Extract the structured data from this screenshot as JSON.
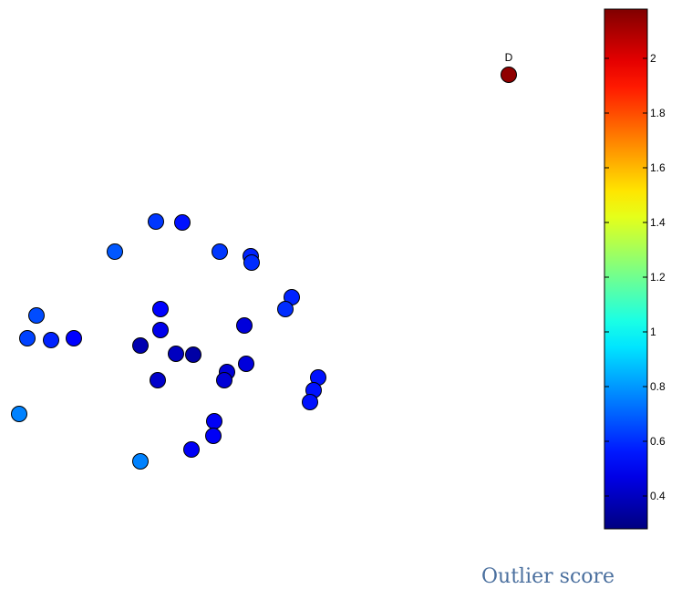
{
  "chart_data": {
    "type": "scatter",
    "title": "",
    "xlabel": "",
    "ylabel": "",
    "axes_visible": false,
    "grid": false,
    "colormap": "jet",
    "colorbar": {
      "min": 0.28,
      "max": 2.18,
      "ticks": [
        0.4,
        0.6,
        0.8,
        1,
        1.2,
        1.4,
        1.6,
        1.8,
        2
      ],
      "tick_labels": [
        "0.4",
        "0.6",
        "0.8",
        "1",
        "1.2",
        "1.4",
        "1.6",
        "1.8",
        "2"
      ],
      "location": "right",
      "caption": "Outlier score"
    },
    "points": [
      {
        "x": 558,
        "y": -82,
        "score": 2.15,
        "label": "D"
      },
      {
        "x": 171,
        "y": -243,
        "score": 0.62
      },
      {
        "x": 200,
        "y": -244,
        "score": 0.55
      },
      {
        "x": 126,
        "y": -276,
        "score": 0.68
      },
      {
        "x": 241,
        "y": -276,
        "score": 0.62
      },
      {
        "x": 275,
        "y": -281,
        "score": 0.58
      },
      {
        "x": 276,
        "y": -288,
        "score": 0.6
      },
      {
        "x": 320,
        "y": -326,
        "score": 0.58
      },
      {
        "x": 313,
        "y": -339,
        "score": 0.6
      },
      {
        "x": 176,
        "y": -339,
        "score": 0.52
      },
      {
        "x": 40,
        "y": -346,
        "score": 0.66
      },
      {
        "x": 268,
        "y": -357,
        "score": 0.45
      },
      {
        "x": 176,
        "y": -362,
        "score": 0.48
      },
      {
        "x": 30,
        "y": -371,
        "score": 0.64
      },
      {
        "x": 56,
        "y": -373,
        "score": 0.58
      },
      {
        "x": 81,
        "y": -371,
        "score": 0.52
      },
      {
        "x": 154,
        "y": -379,
        "score": 0.37
      },
      {
        "x": 193,
        "y": -388,
        "score": 0.4
      },
      {
        "x": 212,
        "y": -389,
        "score": 0.35
      },
      {
        "x": 270,
        "y": -399,
        "score": 0.45
      },
      {
        "x": 249,
        "y": -408,
        "score": 0.44
      },
      {
        "x": 246,
        "y": -417,
        "score": 0.44
      },
      {
        "x": 173,
        "y": -417,
        "score": 0.42
      },
      {
        "x": 349,
        "y": -414,
        "score": 0.55
      },
      {
        "x": 344,
        "y": -428,
        "score": 0.55
      },
      {
        "x": 340,
        "y": -441,
        "score": 0.55
      },
      {
        "x": 21,
        "y": -454,
        "score": 0.76
      },
      {
        "x": 235,
        "y": -462,
        "score": 0.5
      },
      {
        "x": 234,
        "y": -478,
        "score": 0.5
      },
      {
        "x": 210,
        "y": -493,
        "score": 0.5
      },
      {
        "x": 154,
        "y": -506,
        "score": 0.76
      }
    ],
    "xlim": [
      0,
      640
    ],
    "ylim": [
      -560,
      0
    ]
  }
}
